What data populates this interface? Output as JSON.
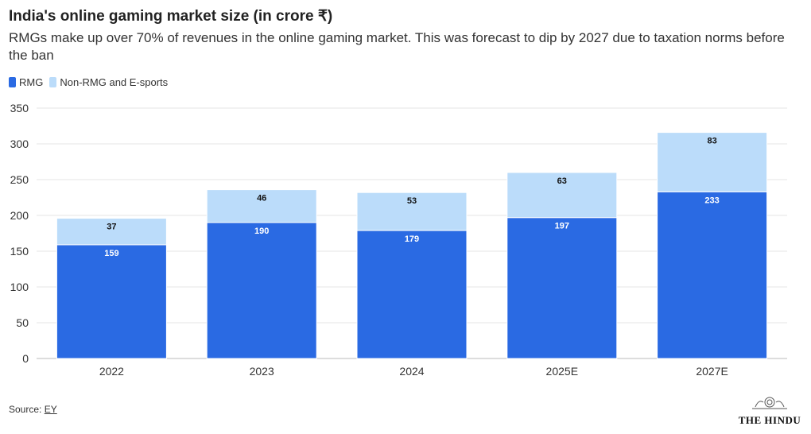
{
  "title": "India's online gaming market size (in crore ₹)",
  "subtitle": "RMGs make up over 70% of revenues in the online gaming market. This was forecast to dip by 2027 due to taxation norms before the ban",
  "source_label": "Source:",
  "source_name": "EY",
  "logo_text": "THE HINDU",
  "colors": {
    "rmg": "#2a6ae3",
    "non_rmg": "#bbdcfa"
  },
  "chart_data": {
    "type": "bar",
    "stacked": true,
    "categories": [
      "2022",
      "2023",
      "2024",
      "2025E",
      "2027E"
    ],
    "series": [
      {
        "name": "RMG",
        "values": [
          159,
          190,
          179,
          197,
          233
        ]
      },
      {
        "name": "Non-RMG and E-sports",
        "values": [
          37,
          46,
          53,
          63,
          83
        ]
      }
    ],
    "ylim": [
      0,
      350
    ],
    "yticks": [
      0,
      50,
      100,
      150,
      200,
      250,
      300,
      350
    ],
    "grid": true,
    "legend": "top-left"
  }
}
